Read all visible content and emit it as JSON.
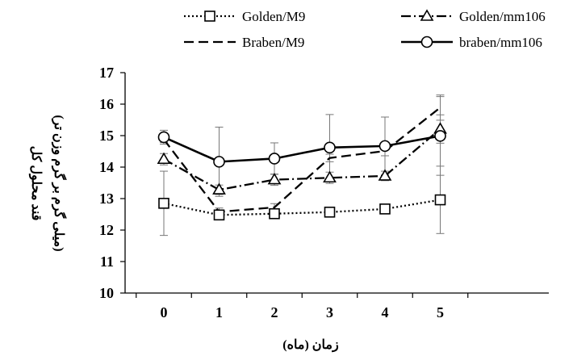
{
  "chart_data": {
    "type": "line",
    "title": "",
    "xlabel": "زمان (ماه)",
    "ylabel": "قند محلول کل",
    "ylabel_line2": "(میلی گرم بر گرم وزن تر)",
    "x": [
      0,
      1,
      2,
      3,
      4,
      5
    ],
    "ylim": [
      10,
      17
    ],
    "yticks": [
      10,
      11,
      12,
      13,
      14,
      15,
      16,
      17
    ],
    "grid": false,
    "legend_position": "top",
    "series": [
      {
        "name": "Golden/M9",
        "line_style": "dotted",
        "marker": "square",
        "values": [
          12.85,
          12.48,
          12.52,
          12.57,
          12.67,
          12.96
        ],
        "error": [
          1.02,
          0.12,
          0.12,
          0.12,
          0.12,
          1.07
        ]
      },
      {
        "name": "Golden/mm106",
        "line_style": "dashdot",
        "marker": "triangle",
        "values": [
          14.25,
          13.28,
          13.6,
          13.66,
          13.72,
          15.21
        ],
        "error": [
          0.18,
          0.15,
          0.18,
          0.18,
          0.15,
          0.45
        ]
      },
      {
        "name": "Braben/M9",
        "line_style": "dashed",
        "marker": "none",
        "values": [
          14.88,
          12.58,
          12.72,
          14.29,
          14.51,
          15.89
        ],
        "error": [
          0.1,
          0.12,
          0.12,
          0.12,
          0.15,
          0.4
        ]
      },
      {
        "name": "braben/mm106",
        "line_style": "solid",
        "marker": "circle",
        "values": [
          14.95,
          14.17,
          14.27,
          14.62,
          14.67,
          14.99
        ],
        "error": [
          0.22,
          1.1,
          0.5,
          1.05,
          0.92,
          1.25
        ]
      }
    ]
  }
}
